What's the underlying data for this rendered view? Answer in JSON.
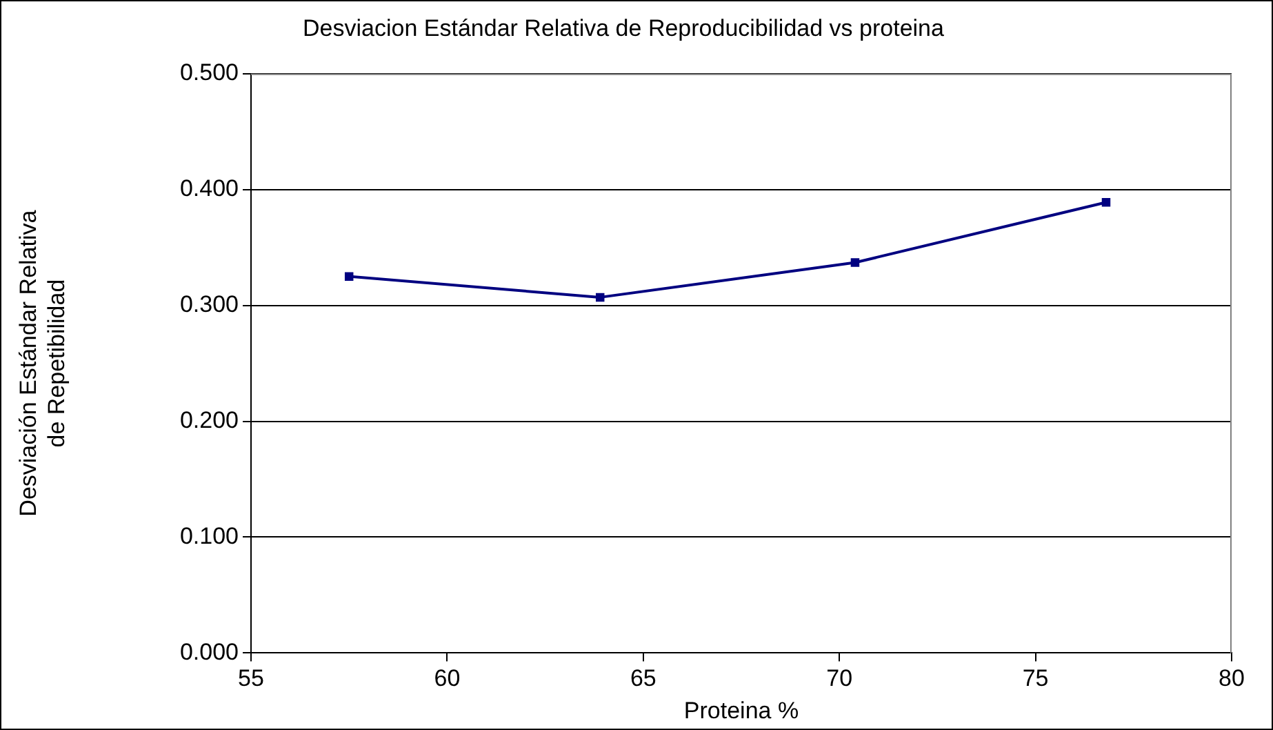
{
  "chart_data": {
    "type": "line",
    "title": "Desviacion Estándar Relativa de Reproducibilidad vs proteina",
    "xlabel": "Proteina %",
    "ylabel": "Desviación Estándar Relativa de Repetibilidad",
    "x": [
      57.5,
      63.9,
      70.4,
      76.8
    ],
    "series": [
      {
        "color": "#000080",
        "values": [
          0.325,
          0.307,
          0.337,
          0.389
        ]
      }
    ],
    "xlim": [
      55,
      80
    ],
    "xticks": [
      55,
      60,
      65,
      70,
      75,
      80
    ],
    "ylim": [
      0,
      0.5
    ],
    "yticks": [
      {
        "value": 0,
        "label": "0.000"
      },
      {
        "value": 0.1,
        "label": "0.100"
      },
      {
        "value": 0.2,
        "label": "0.200"
      },
      {
        "value": 0.3,
        "label": "0.300"
      },
      {
        "value": 0.4,
        "label": "0.400"
      },
      {
        "value": 0.5,
        "label": "0.500"
      }
    ],
    "grid": "y",
    "legend": false,
    "marker": "square",
    "line_style": "solid"
  }
}
